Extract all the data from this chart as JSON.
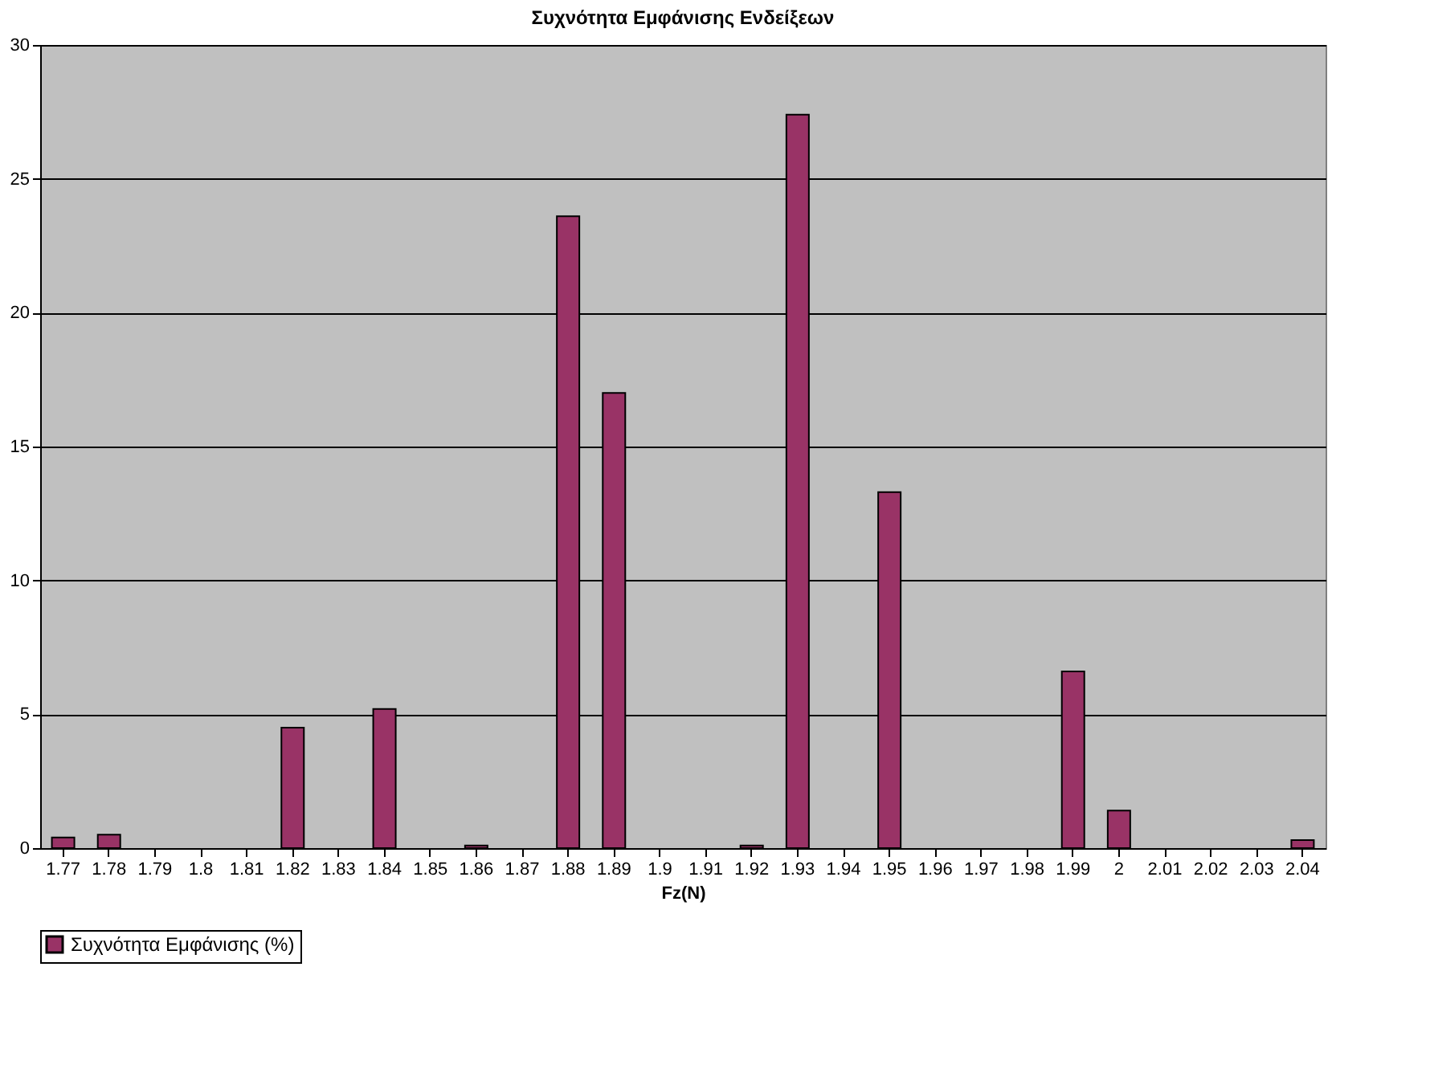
{
  "chart_data": {
    "type": "bar",
    "title": "Συχνότητα Εμφάνισης Ενδείξεων",
    "xlabel": "Fz(N)",
    "categories": [
      "1.77",
      "1.78",
      "1.79",
      "1.8",
      "1.81",
      "1.82",
      "1.83",
      "1.84",
      "1.85",
      "1.86",
      "1.87",
      "1.88",
      "1.89",
      "1.9",
      "1.91",
      "1.92",
      "1.93",
      "1.94",
      "1.95",
      "1.96",
      "1.97",
      "1.98",
      "1.99",
      "2",
      "2.01",
      "2.02",
      "2.03",
      "2.04"
    ],
    "series": [
      {
        "name": "Συχνότητα Εμφάνισης (%)",
        "color": "#993366",
        "values": [
          0.4,
          0.5,
          0,
          0,
          0,
          4.5,
          0,
          5.2,
          0,
          0.1,
          0,
          23.6,
          17.0,
          0,
          0,
          0.1,
          27.4,
          0,
          13.3,
          0,
          0,
          0,
          6.6,
          1.4,
          0,
          0,
          0,
          0.3
        ]
      }
    ],
    "ylim": [
      0,
      30
    ],
    "yticks": [
      0,
      5,
      10,
      15,
      20,
      25,
      30
    ],
    "grid": "y",
    "legend": "bottom"
  }
}
